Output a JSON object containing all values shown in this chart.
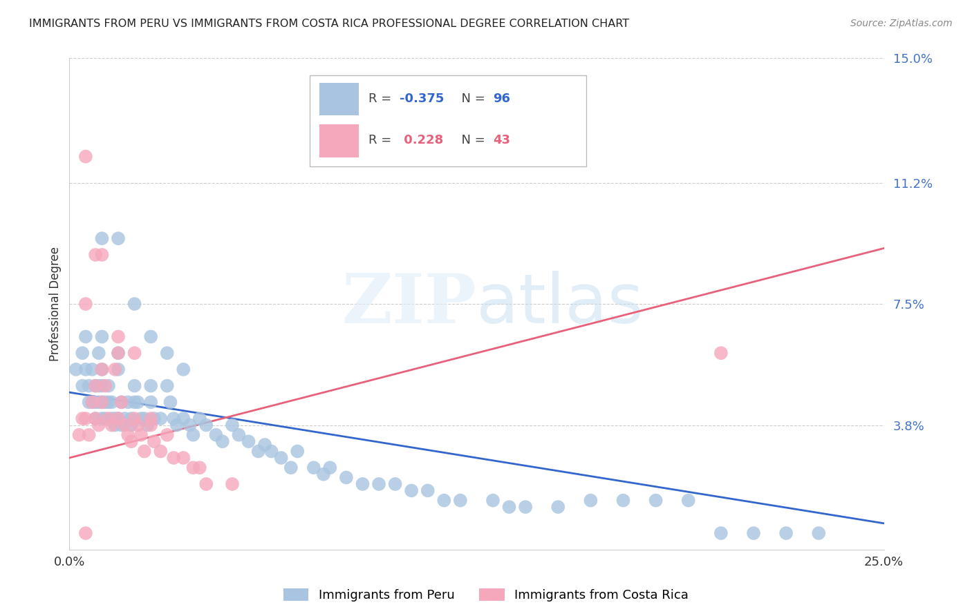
{
  "title": "IMMIGRANTS FROM PERU VS IMMIGRANTS FROM COSTA RICA PROFESSIONAL DEGREE CORRELATION CHART",
  "source": "Source: ZipAtlas.com",
  "ylabel": "Professional Degree",
  "xlim": [
    0.0,
    0.25
  ],
  "ylim": [
    0.0,
    0.15
  ],
  "ytick_labels_right": [
    "15.0%",
    "11.2%",
    "7.5%",
    "3.8%"
  ],
  "ytick_vals_right": [
    0.15,
    0.112,
    0.075,
    0.038
  ],
  "peru_R": -0.375,
  "peru_N": 96,
  "costarica_R": 0.228,
  "costarica_N": 43,
  "peru_color": "#a8c4e0",
  "costarica_color": "#f5a8bc",
  "peru_line_color": "#3366cc",
  "costarica_line_color": "#e8607a",
  "background_color": "#ffffff",
  "grid_color": "#cccccc",
  "peru_trend_x0": 0.0,
  "peru_trend_x1": 0.25,
  "peru_trend_y0": 0.048,
  "peru_trend_y1": 0.008,
  "costarica_trend_x0": 0.0,
  "costarica_trend_x1": 0.25,
  "costarica_trend_y0": 0.028,
  "costarica_trend_y1": 0.092,
  "peru_scatter_x": [
    0.002,
    0.004,
    0.004,
    0.005,
    0.005,
    0.006,
    0.006,
    0.007,
    0.007,
    0.008,
    0.008,
    0.008,
    0.009,
    0.009,
    0.009,
    0.01,
    0.01,
    0.01,
    0.01,
    0.01,
    0.011,
    0.011,
    0.012,
    0.012,
    0.013,
    0.013,
    0.014,
    0.014,
    0.015,
    0.015,
    0.015,
    0.016,
    0.016,
    0.017,
    0.018,
    0.019,
    0.019,
    0.02,
    0.02,
    0.021,
    0.022,
    0.023,
    0.024,
    0.025,
    0.025,
    0.026,
    0.028,
    0.03,
    0.031,
    0.032,
    0.033,
    0.035,
    0.037,
    0.038,
    0.04,
    0.042,
    0.045,
    0.047,
    0.05,
    0.052,
    0.055,
    0.058,
    0.06,
    0.062,
    0.065,
    0.068,
    0.07,
    0.075,
    0.078,
    0.08,
    0.085,
    0.09,
    0.095,
    0.1,
    0.105,
    0.11,
    0.115,
    0.12,
    0.13,
    0.135,
    0.14,
    0.15,
    0.16,
    0.17,
    0.18,
    0.19,
    0.2,
    0.21,
    0.22,
    0.23,
    0.01,
    0.015,
    0.02,
    0.025,
    0.03,
    0.035
  ],
  "peru_scatter_y": [
    0.055,
    0.06,
    0.05,
    0.065,
    0.055,
    0.045,
    0.05,
    0.055,
    0.045,
    0.05,
    0.045,
    0.04,
    0.06,
    0.05,
    0.045,
    0.065,
    0.055,
    0.05,
    0.045,
    0.04,
    0.045,
    0.04,
    0.05,
    0.045,
    0.045,
    0.04,
    0.04,
    0.038,
    0.06,
    0.055,
    0.04,
    0.045,
    0.038,
    0.04,
    0.045,
    0.04,
    0.038,
    0.05,
    0.045,
    0.045,
    0.04,
    0.04,
    0.038,
    0.05,
    0.045,
    0.04,
    0.04,
    0.05,
    0.045,
    0.04,
    0.038,
    0.04,
    0.038,
    0.035,
    0.04,
    0.038,
    0.035,
    0.033,
    0.038,
    0.035,
    0.033,
    0.03,
    0.032,
    0.03,
    0.028,
    0.025,
    0.03,
    0.025,
    0.023,
    0.025,
    0.022,
    0.02,
    0.02,
    0.02,
    0.018,
    0.018,
    0.015,
    0.015,
    0.015,
    0.013,
    0.013,
    0.013,
    0.015,
    0.015,
    0.015,
    0.015,
    0.005,
    0.005,
    0.005,
    0.005,
    0.095,
    0.095,
    0.075,
    0.065,
    0.06,
    0.055
  ],
  "costarica_scatter_x": [
    0.003,
    0.004,
    0.005,
    0.005,
    0.006,
    0.007,
    0.008,
    0.008,
    0.009,
    0.01,
    0.01,
    0.011,
    0.012,
    0.013,
    0.014,
    0.015,
    0.015,
    0.016,
    0.017,
    0.018,
    0.019,
    0.02,
    0.021,
    0.022,
    0.023,
    0.025,
    0.026,
    0.028,
    0.03,
    0.032,
    0.035,
    0.038,
    0.04,
    0.042,
    0.05,
    0.005,
    0.008,
    0.01,
    0.015,
    0.02,
    0.025,
    0.2,
    0.005
  ],
  "costarica_scatter_y": [
    0.035,
    0.04,
    0.12,
    0.04,
    0.035,
    0.045,
    0.05,
    0.04,
    0.038,
    0.055,
    0.045,
    0.05,
    0.04,
    0.038,
    0.055,
    0.065,
    0.04,
    0.045,
    0.038,
    0.035,
    0.033,
    0.04,
    0.038,
    0.035,
    0.03,
    0.038,
    0.033,
    0.03,
    0.035,
    0.028,
    0.028,
    0.025,
    0.025,
    0.02,
    0.02,
    0.075,
    0.09,
    0.09,
    0.06,
    0.06,
    0.04,
    0.06,
    0.005
  ],
  "legend_label_peru": "Immigrants from Peru",
  "legend_label_costarica": "Immigrants from Costa Rica"
}
